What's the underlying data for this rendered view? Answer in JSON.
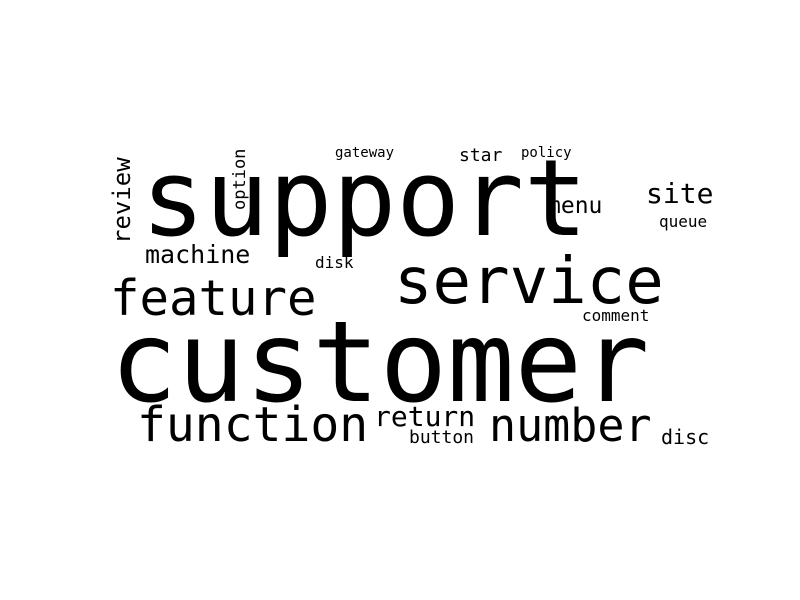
{
  "words": {
    "support": "support",
    "customer": "customer",
    "service": "service",
    "feature": "feature",
    "function": "function",
    "number": "number",
    "return": "return",
    "machine": "machine",
    "review": "review",
    "menu": "menu",
    "site": "site",
    "option": "option",
    "gateway": "gateway",
    "star": "star",
    "policy": "policy",
    "queue": "queue",
    "disk": "disk",
    "comment": "comment",
    "button": "button",
    "disc": "disc"
  },
  "colors": {
    "background": "#ffffff",
    "text": "#000000"
  }
}
